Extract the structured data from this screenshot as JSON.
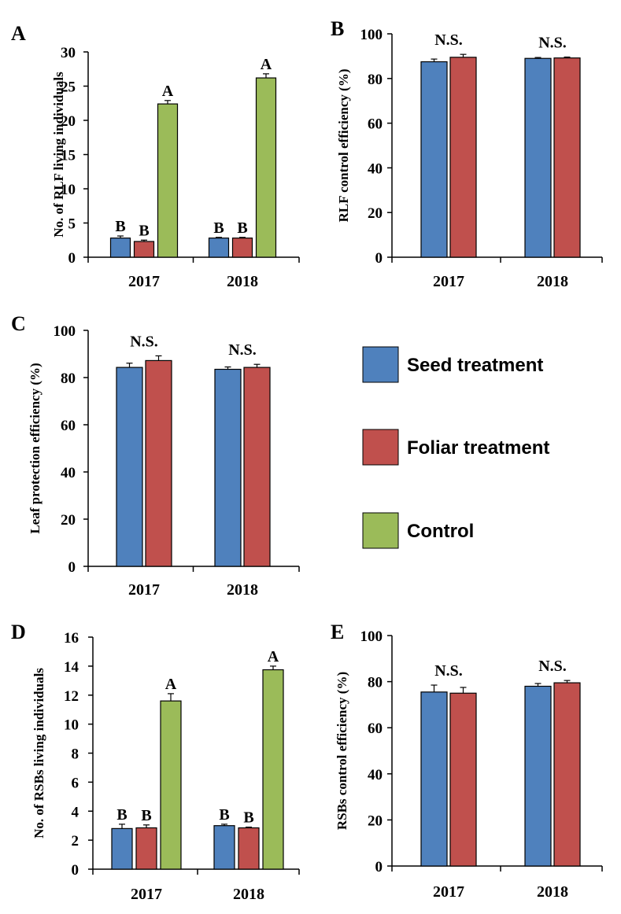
{
  "colors": {
    "seed": "#4f81bd",
    "foliar": "#c0504d",
    "control": "#9bbb59",
    "axis": "#000000"
  },
  "legend": {
    "items": [
      {
        "label": "Seed treatment",
        "color": "#4f81bd"
      },
      {
        "label": "Foliar treatment",
        "color": "#c0504d"
      },
      {
        "label": "Control",
        "color": "#9bbb59"
      }
    ]
  },
  "chart_data": [
    {
      "panel": "A",
      "type": "bar",
      "categories": [
        "2017",
        "2018"
      ],
      "ylabel": "No. of RLF living individuals",
      "ylim": [
        0,
        30
      ],
      "yticks": [
        0,
        5,
        10,
        15,
        20,
        25,
        30
      ],
      "series": [
        {
          "name": "Seed treatment",
          "values": [
            2.8,
            2.8
          ],
          "errors": [
            0.3,
            0.1
          ],
          "letters": [
            "B",
            "B"
          ]
        },
        {
          "name": "Foliar treatment",
          "values": [
            2.3,
            2.8
          ],
          "errors": [
            0.2,
            0.1
          ],
          "letters": [
            "B",
            "B"
          ]
        },
        {
          "name": "Control",
          "values": [
            22.4,
            26.2
          ],
          "errors": [
            0.5,
            0.6
          ],
          "letters": [
            "A",
            "A"
          ]
        }
      ],
      "group_labels": []
    },
    {
      "panel": "B",
      "type": "bar",
      "categories": [
        "2017",
        "2018"
      ],
      "ylabel": "RLF control efficiency (%)",
      "ylim": [
        0,
        100
      ],
      "yticks": [
        0,
        20,
        40,
        60,
        80,
        100
      ],
      "series": [
        {
          "name": "Seed treatment",
          "values": [
            87.5,
            89.0
          ],
          "errors": [
            1.2,
            0.4
          ]
        },
        {
          "name": "Foliar treatment",
          "values": [
            89.5,
            89.2
          ],
          "errors": [
            1.3,
            0.4
          ]
        }
      ],
      "group_labels": [
        "N.S.",
        "N.S."
      ]
    },
    {
      "panel": "C",
      "type": "bar",
      "categories": [
        "2017",
        "2018"
      ],
      "ylabel": "Leaf protection efficiency (%)",
      "ylim": [
        0,
        100
      ],
      "yticks": [
        0,
        20,
        40,
        60,
        80,
        100
      ],
      "series": [
        {
          "name": "Seed treatment",
          "values": [
            84.3,
            83.5
          ],
          "errors": [
            1.8,
            1.0
          ]
        },
        {
          "name": "Foliar treatment",
          "values": [
            87.2,
            84.3
          ],
          "errors": [
            2.0,
            1.3
          ]
        }
      ],
      "group_labels": [
        "N.S.",
        "N.S."
      ]
    },
    {
      "panel": "D",
      "type": "bar",
      "categories": [
        "2017",
        "2018"
      ],
      "ylabel": "No. of RSBs living individuals",
      "ylim": [
        0,
        16
      ],
      "yticks": [
        0,
        2,
        4,
        6,
        8,
        10,
        12,
        14,
        16
      ],
      "series": [
        {
          "name": "Seed treatment",
          "values": [
            2.8,
            3.0
          ],
          "errors": [
            0.3,
            0.1
          ],
          "letters": [
            "B",
            "B"
          ]
        },
        {
          "name": "Foliar treatment",
          "values": [
            2.85,
            2.85
          ],
          "errors": [
            0.2,
            0.05
          ],
          "letters": [
            "B",
            "B"
          ]
        },
        {
          "name": "Control",
          "values": [
            11.6,
            13.75
          ],
          "errors": [
            0.5,
            0.25
          ],
          "letters": [
            "A",
            "A"
          ]
        }
      ],
      "group_labels": []
    },
    {
      "panel": "E",
      "type": "bar",
      "categories": [
        "2017",
        "2018"
      ],
      "ylabel": "RSBs control efficiency (%)",
      "ylim": [
        0,
        100
      ],
      "yticks": [
        0,
        20,
        40,
        60,
        80,
        100
      ],
      "series": [
        {
          "name": "Seed treatment",
          "values": [
            75.5,
            78.0
          ],
          "errors": [
            3.0,
            1.2
          ]
        },
        {
          "name": "Foliar treatment",
          "values": [
            75.0,
            79.5
          ],
          "errors": [
            2.5,
            1.0
          ]
        }
      ],
      "group_labels": [
        "N.S.",
        "N.S."
      ]
    }
  ]
}
